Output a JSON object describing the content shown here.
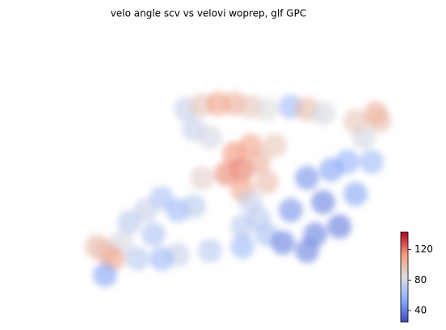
{
  "chart_data": {
    "type": "scatter",
    "title": "velo angle scv vs velovi woprep, glf GPC",
    "xlim": [
      0,
      47
    ],
    "ylim": [
      0,
      36
    ],
    "x": [
      21,
      23,
      25,
      27,
      29,
      31,
      34,
      36,
      38,
      27,
      28,
      26,
      29,
      30,
      28,
      31,
      32,
      29,
      30,
      31,
      28,
      36,
      38,
      40,
      37,
      42,
      44,
      43,
      45,
      41,
      39,
      34,
      33,
      36,
      28,
      24,
      20,
      18,
      20,
      22,
      16,
      14,
      17,
      13,
      11,
      12,
      15,
      18,
      11,
      10,
      22,
      24,
      23,
      42,
      44.5
    ],
    "y": [
      26.5,
      27,
      27.2,
      27.2,
      26.8,
      26.5,
      26.8,
      26.5,
      26,
      21,
      19,
      18.5,
      22,
      20,
      16.5,
      17.5,
      22,
      15,
      13,
      11,
      12,
      18,
      15,
      12,
      11,
      16,
      20,
      23,
      25,
      20,
      19,
      14,
      10,
      9,
      9.5,
      9,
      8.5,
      15.5,
      14,
      14.5,
      14,
      12.5,
      11,
      10,
      9,
      8,
      8,
      8,
      6,
      9.5,
      24,
      23,
      18,
      25,
      26
    ],
    "values": [
      75,
      95,
      110,
      105,
      95,
      85,
      60,
      100,
      80,
      115,
      120,
      118,
      110,
      105,
      110,
      100,
      95,
      75,
      70,
      65,
      70,
      45,
      40,
      38,
      40,
      50,
      60,
      80,
      95,
      55,
      50,
      45,
      40,
      40,
      60,
      70,
      75,
      65,
      60,
      70,
      75,
      70,
      65,
      80,
      95,
      110,
      70,
      60,
      50,
      100,
      75,
      80,
      90,
      95,
      105
    ],
    "colormap": "coolwarm",
    "clim": [
      25,
      143
    ],
    "cticks": [
      40,
      80,
      120
    ]
  }
}
